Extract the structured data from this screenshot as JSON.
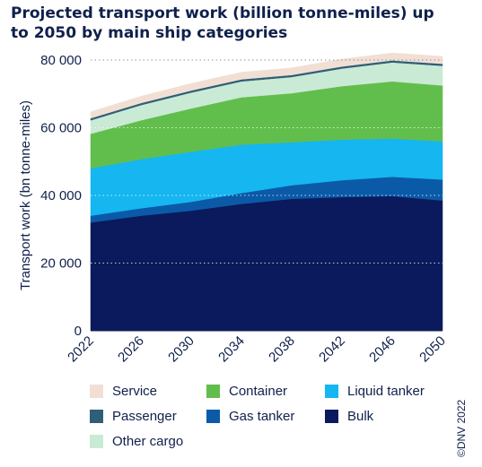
{
  "title": "Projected transport work (billion tonne-miles) up to 2050 by main ship categories",
  "copyright": "©DNV 2022",
  "colors": {
    "Bulk": "#0a1a5c",
    "Gas tanker": "#0a5aa8",
    "Liquid tanker": "#16b6f0",
    "Container": "#62be4c",
    "Other cargo": "#c9ead4",
    "Passenger": "#2e5e78",
    "Service": "#f2dfd4"
  },
  "legend": [
    {
      "label": "Service",
      "color": "#f2dfd4"
    },
    {
      "label": "Container",
      "color": "#62be4c"
    },
    {
      "label": "Liquid tanker",
      "color": "#16b6f0"
    },
    {
      "label": "Passenger",
      "color": "#2e5e78"
    },
    {
      "label": "Gas tanker",
      "color": "#0a5aa8"
    },
    {
      "label": "Bulk",
      "color": "#0a1a5c"
    },
    {
      "label": "Other cargo",
      "color": "#c9ead4"
    }
  ],
  "chart_data": {
    "type": "area",
    "stacked": true,
    "title": "Projected transport work (billion tonne-miles) up to 2050 by main ship categories",
    "xlabel": "",
    "ylabel": "Transport work (bn tonne-miles)",
    "x": [
      2022,
      2026,
      2030,
      2034,
      2038,
      2042,
      2046,
      2050
    ],
    "x_ticks": [
      "2022",
      "2026",
      "2030",
      "2034",
      "2038",
      "2042",
      "2046",
      "2050"
    ],
    "ylim": [
      0,
      80000
    ],
    "y_ticks": [
      "0",
      "20 000",
      "40 000",
      "60 000",
      "80 000"
    ],
    "y_tick_values": [
      0,
      20000,
      40000,
      60000,
      80000
    ],
    "grid": "horizontal dotted",
    "legend_position": "bottom",
    "series": [
      {
        "name": "Bulk",
        "values": [
          32000,
          34000,
          35500,
          37500,
          39000,
          39500,
          39800,
          38500
        ]
      },
      {
        "name": "Gas tanker",
        "values": [
          2000,
          2200,
          2600,
          3200,
          4000,
          5000,
          5700,
          6200
        ]
      },
      {
        "name": "Liquid tanker",
        "values": [
          14000,
          14500,
          14800,
          14300,
          12700,
          12000,
          11300,
          11300
        ]
      },
      {
        "name": "Container",
        "values": [
          10200,
          11500,
          12800,
          14000,
          14500,
          15800,
          16900,
          16500
        ]
      },
      {
        "name": "Other cargo",
        "values": [
          4000,
          4500,
          4700,
          4700,
          4800,
          5200,
          5600,
          5800
        ]
      },
      {
        "name": "Passenger",
        "values": [
          600,
          600,
          600,
          600,
          600,
          600,
          600,
          600
        ]
      },
      {
        "name": "Service",
        "values": [
          1900,
          2000,
          2100,
          2100,
          2100,
          2200,
          2200,
          2200
        ]
      }
    ]
  }
}
